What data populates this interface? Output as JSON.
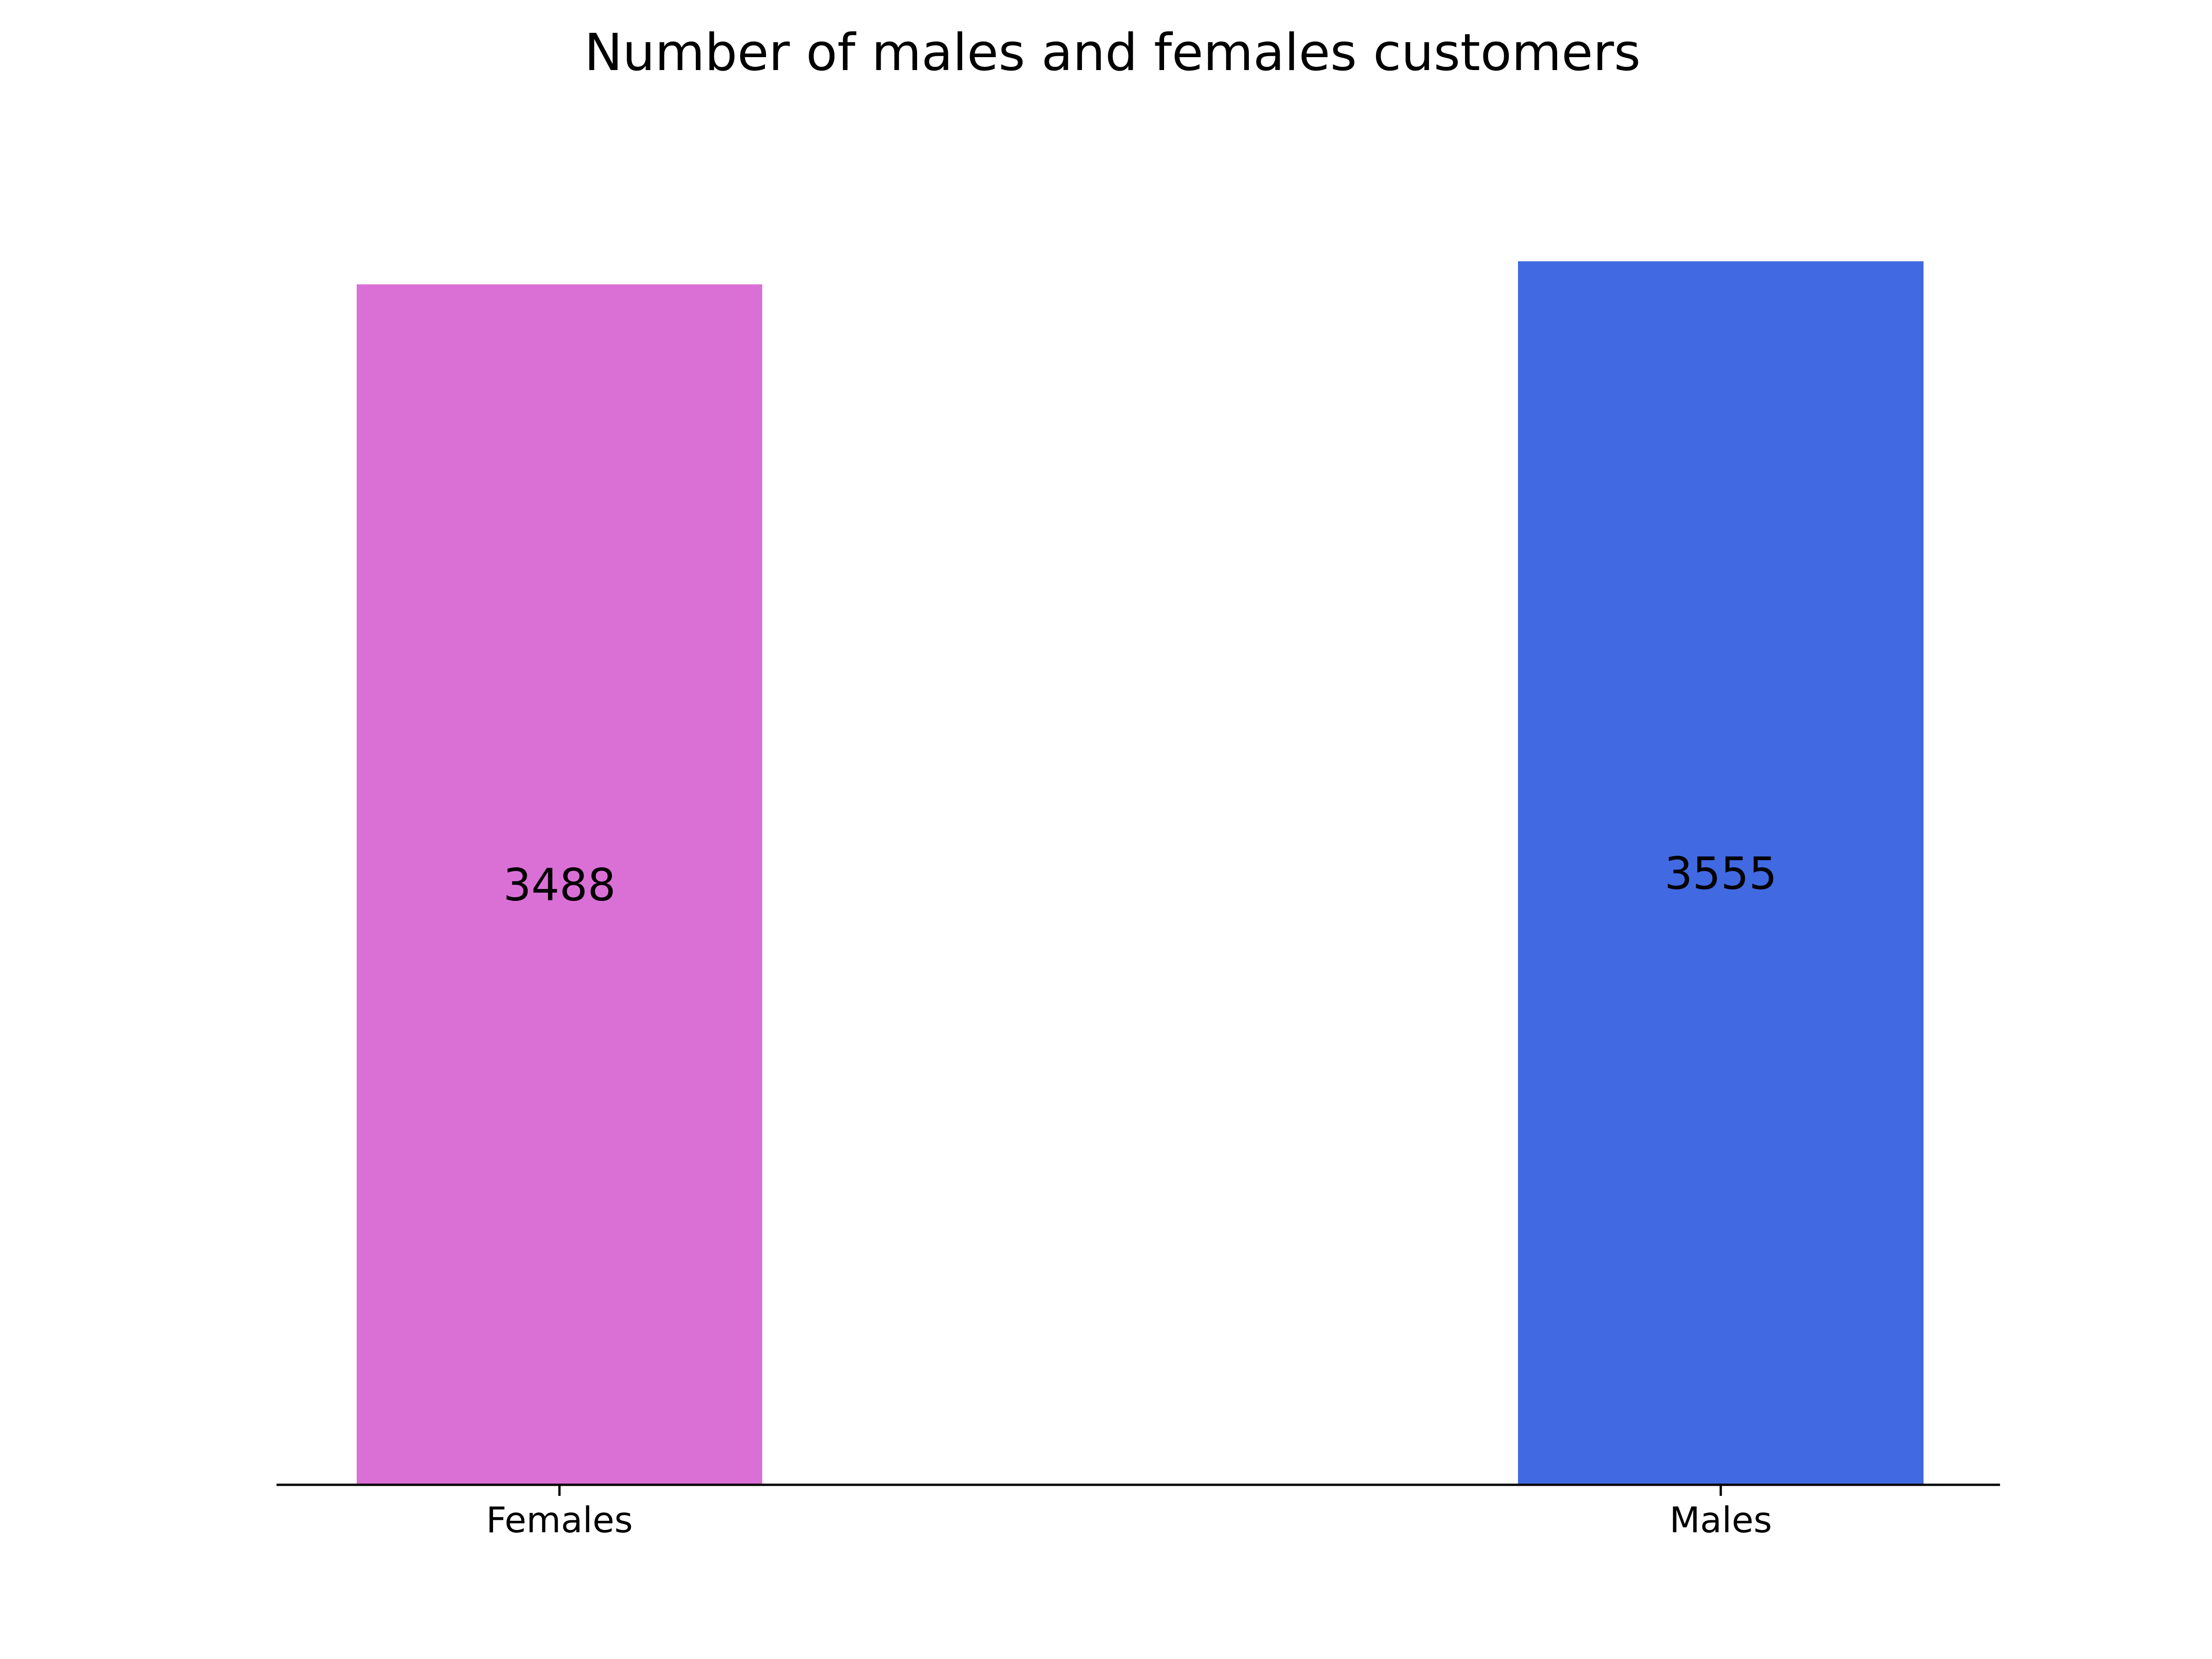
{
  "chart_data": {
    "type": "bar",
    "title": "Number of males and females customers",
    "categories": [
      "Females",
      "Males"
    ],
    "values": [
      3488,
      3555
    ],
    "bar_labels": [
      "3488",
      "3555"
    ],
    "colors": [
      "#da70d6",
      "#4169e1"
    ],
    "ylim": [
      0,
      3733
    ],
    "grid": false,
    "legend": "none",
    "axes": {
      "left_visible": false,
      "top_visible": false,
      "right_visible": false,
      "bottom_visible": true,
      "y_ticks_visible": false
    }
  }
}
